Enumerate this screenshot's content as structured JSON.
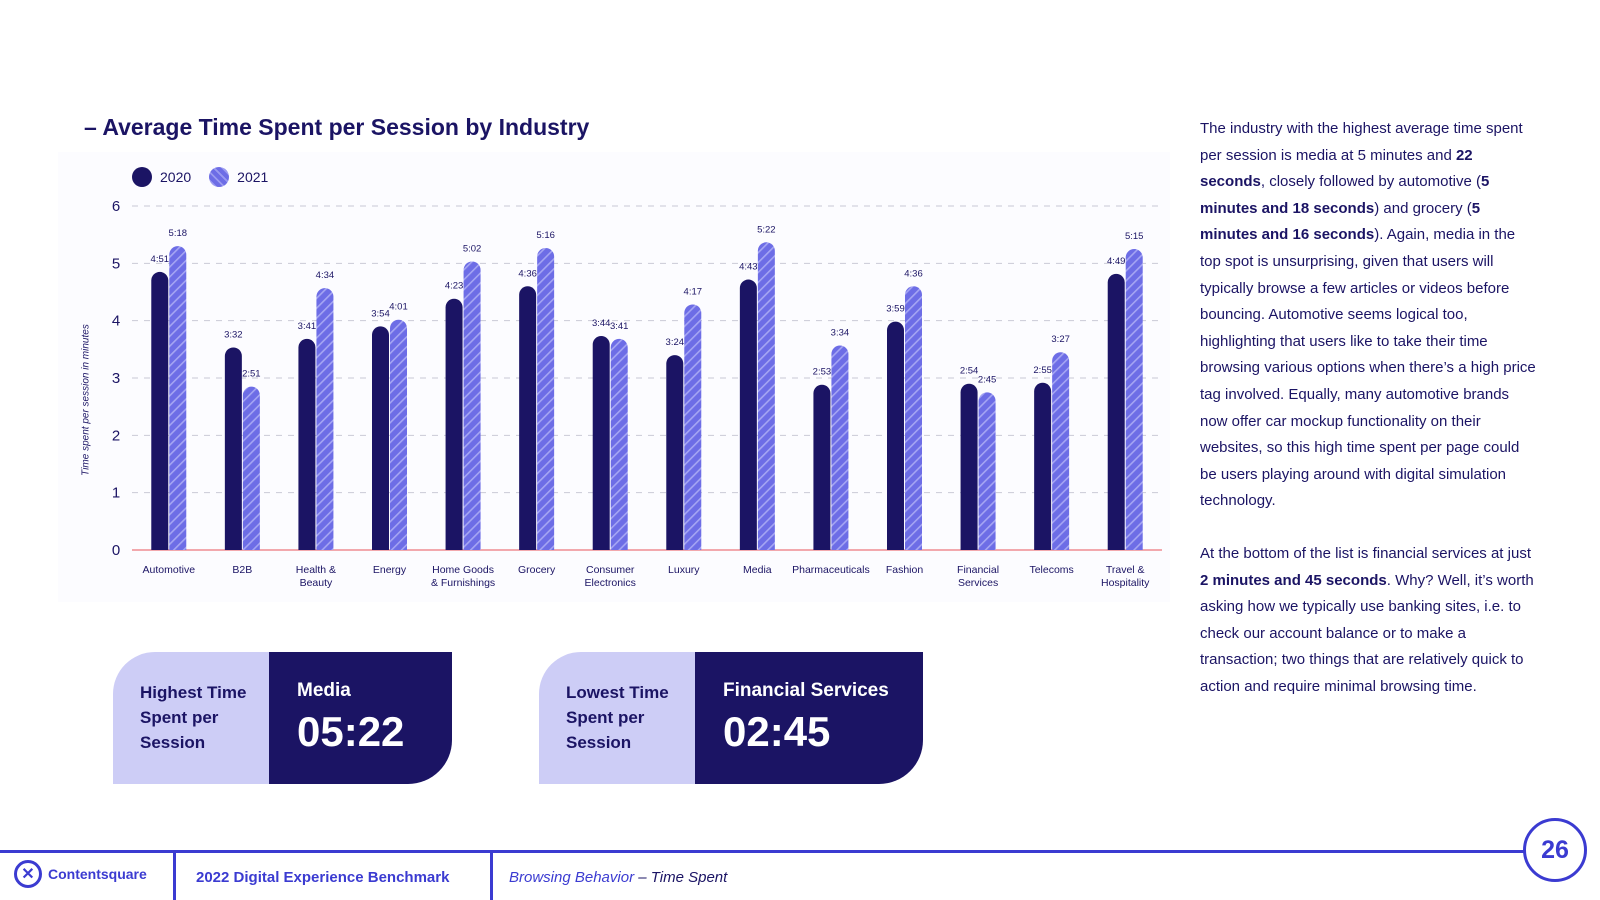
{
  "title": "– Average Time Spent per Session by Industry",
  "chart_data": {
    "type": "bar",
    "title": "Average Time Spent per Session by Industry",
    "ylabel": "Time spent per session in minutes",
    "xlabel": "",
    "ylim": [
      0,
      6
    ],
    "yticks": [
      0,
      1,
      2,
      3,
      4,
      5,
      6
    ],
    "grid": true,
    "legend_position": "top-left",
    "categories": [
      [
        "Automotive"
      ],
      [
        "B2B"
      ],
      [
        "Health &",
        "Beauty"
      ],
      [
        "Energy"
      ],
      [
        "Home Goods",
        "& Furnishings"
      ],
      [
        "Grocery"
      ],
      [
        "Consumer",
        "Electronics"
      ],
      [
        "Luxury"
      ],
      [
        "Media"
      ],
      [
        "Pharmaceuticals"
      ],
      [
        "Fashion"
      ],
      [
        "Financial",
        "Services"
      ],
      [
        "Telecoms"
      ],
      [
        "Travel &",
        "Hospitality"
      ]
    ],
    "series": [
      {
        "name": "2020",
        "color": "#1b1464",
        "values": [
          4.85,
          3.533,
          3.683,
          3.9,
          4.383,
          4.6,
          3.733,
          3.4,
          4.717,
          2.883,
          3.983,
          2.9,
          2.917,
          4.817
        ],
        "labels": [
          "4:51",
          "3:32",
          "3:41",
          "3:54",
          "4:23",
          "4:36",
          "3:44",
          "3:24",
          "4:43",
          "2:53",
          "3:59",
          "2:54",
          "2:55",
          "4:49"
        ]
      },
      {
        "name": "2021",
        "color": "#6d6de6",
        "values": [
          5.3,
          2.85,
          4.567,
          4.017,
          5.033,
          5.267,
          3.683,
          4.283,
          5.367,
          3.567,
          4.6,
          2.75,
          3.45,
          5.25
        ],
        "labels": [
          "5:18",
          "2:51",
          "4:34",
          "4:01",
          "5:02",
          "5:16",
          "3:41",
          "4:17",
          "5:22",
          "3:34",
          "4:36",
          "2:45",
          "3:27",
          "5:15"
        ]
      }
    ]
  },
  "cards": [
    {
      "label_lines": [
        "Highest Time",
        "Spent per",
        "Session"
      ],
      "name": "Media",
      "value": "05:22"
    },
    {
      "label_lines": [
        "Lowest Time",
        "Spent per",
        "Session"
      ],
      "name": "Financial Services",
      "value": "02:45"
    }
  ],
  "body": {
    "p1": [
      {
        "t": "The industry with the highest average time spent per session is media at 5 minutes and ",
        "b": false
      },
      {
        "t": "22 seconds",
        "b": true
      },
      {
        "t": ", closely followed by automotive (",
        "b": false
      },
      {
        "t": "5 minutes and 18 seconds",
        "b": true
      },
      {
        "t": ") and grocery (",
        "b": false
      },
      {
        "t": "5 minutes and 16 seconds",
        "b": true
      },
      {
        "t": "). Again, media in the top spot is unsurprising, given that users will typically browse a few articles or videos before bouncing. Automotive seems logical too, highlighting that users like to take their time browsing various options when there’s a high price tag involved. Equally, many automotive brands now offer car mockup functionality on their websites, so this high time spent per page could be users playing around with digital simulation technology.",
        "b": false
      }
    ],
    "p2": [
      {
        "t": "At the bottom of the list is financial services at just ",
        "b": false
      },
      {
        "t": "2 minutes and 45 seconds",
        "b": true
      },
      {
        "t": ". Why? Well, it’s worth asking how we typically use banking sites, i.e. to check our account balance or to make a transaction; two things that are relatively quick to action and require minimal browsing time.",
        "b": false
      }
    ]
  },
  "footer": {
    "logo_text": "Contentsquare",
    "benchmark": "2022 Digital Experience Benchmark",
    "section_main": "Browsing Behavior",
    "section_sub": " – Time Spent",
    "page_number": "26"
  }
}
